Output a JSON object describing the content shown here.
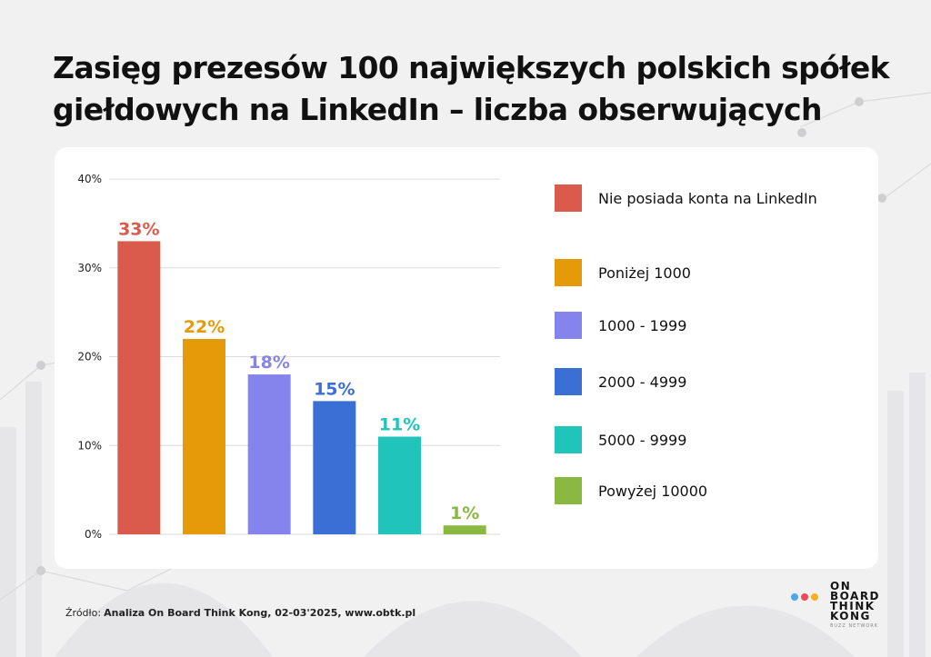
{
  "title": "Zasięg prezesów 100 największych polskich spółek giełdowych na LinkedIn – liczba obserwujących",
  "chart_data": {
    "type": "bar",
    "categories": [
      "Nie posiada konta na LinkedIn",
      "Poniżej 1000",
      "1000 - 1999",
      "2000 - 4999",
      "5000 - 9999",
      "Powyżej 10000"
    ],
    "values": [
      33,
      22,
      18,
      15,
      11,
      1
    ],
    "value_labels": [
      "33%",
      "22%",
      "18%",
      "15%",
      "11%",
      "1%"
    ],
    "colors": [
      "#da5b4c",
      "#e59b07",
      "#8583ec",
      "#3c6fd6",
      "#20c4bb",
      "#8ab942"
    ],
    "ylim": [
      0,
      40
    ],
    "yticks": [
      0,
      10,
      20,
      30,
      40
    ],
    "ytick_labels": [
      "0%",
      "10%",
      "20%",
      "30%",
      "40%"
    ],
    "grid": true,
    "legend_position": "right"
  },
  "source": {
    "prefix": "Źródło:",
    "text": "Analiza On Board Think Kong, 02-03'2025, www.obtk.pl"
  },
  "logo": {
    "lines": [
      "ON",
      "BOARD",
      "THINK",
      "KONG"
    ],
    "tagline": "BUZZ NETWORK",
    "dot_colors": [
      "#4aa8ef",
      "#ef4a5a",
      "#f4b01d"
    ]
  }
}
